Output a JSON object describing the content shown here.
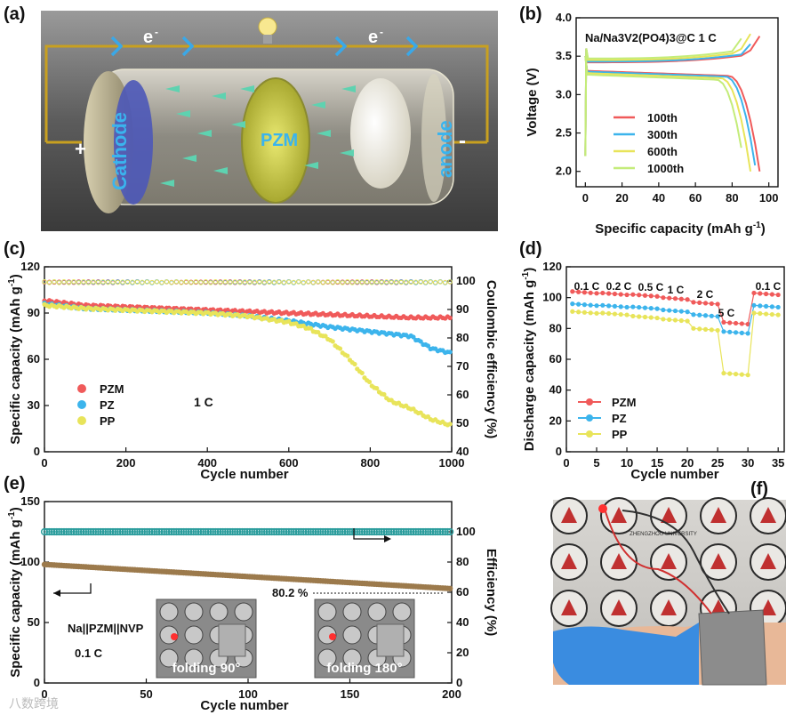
{
  "panels": {
    "a": "(a)",
    "b": "(b)",
    "c": "(c)",
    "d": "(d)",
    "e": "(e)",
    "f": "(f)"
  },
  "panel_a": {
    "electron_label_1": "e",
    "electron_label_2": "e",
    "electron_sup": "-",
    "cathode": "Cathode",
    "anode": "anode",
    "separator": "PZM",
    "plus": "+",
    "minus": "-"
  },
  "panel_f": {
    "badge_text": "ZHENGZHOU UNIVERSITY"
  },
  "watermark": "八数跨境",
  "colors": {
    "red": "#f05a5a",
    "blue": "#3cb4ec",
    "yellow": "#e8e45a",
    "lightgreen": "#c4ec7a",
    "teal": "#2a9c9c",
    "brown": "#9c7a4c"
  },
  "chart_data": [
    {
      "id": "b",
      "type": "line",
      "title": "Na/Na3V2(PO4)3@C   1 C",
      "xlabel": "Specific capacity (mAh g-1)",
      "ylabel": "Voltage (V)",
      "xlim": [
        -5,
        105
      ],
      "ylim": [
        1.8,
        4.0
      ],
      "xticks": [
        0,
        20,
        40,
        60,
        80,
        100
      ],
      "yticks": [
        2.0,
        2.5,
        3.0,
        3.5,
        4.0
      ],
      "legend": [
        "100th",
        "300th",
        "600th",
        "1000th"
      ],
      "series": [
        {
          "name": "100th",
          "charge_end": 95,
          "discharge_end": 95,
          "charge_plateau": 3.42,
          "discharge_plateau": 3.31
        },
        {
          "name": "300th",
          "charge_end": 93,
          "discharge_end": 93,
          "charge_plateau": 3.43,
          "discharge_plateau": 3.3
        },
        {
          "name": "600th",
          "charge_end": 90,
          "discharge_end": 90,
          "charge_plateau": 3.45,
          "discharge_plateau": 3.28
        },
        {
          "name": "1000th",
          "charge_end": 87,
          "discharge_end": 87,
          "charge_plateau": 3.47,
          "discharge_plateau": 3.26
        }
      ]
    },
    {
      "id": "c",
      "type": "scatter",
      "xlabel": "Cycle number",
      "ylabel": "Specific capacity (mAh g-1)",
      "ylabel_right": "Coulombic efficiency (%)",
      "xlim": [
        0,
        1000
      ],
      "ylim": [
        0,
        120
      ],
      "ylim_right": [
        40,
        105
      ],
      "xticks": [
        0,
        200,
        400,
        600,
        800,
        1000
      ],
      "yticks": [
        0,
        30,
        60,
        90,
        120
      ],
      "yticks_right": [
        40,
        50,
        60,
        70,
        80,
        90,
        100
      ],
      "annotation": "1 C",
      "legend": [
        "PZM",
        "PZ",
        "PP"
      ],
      "series": [
        {
          "name": "PZM",
          "x": [
            0,
            100,
            200,
            300,
            400,
            500,
            600,
            700,
            800,
            900,
            1000
          ],
          "y": [
            98,
            95,
            94,
            93,
            92,
            91,
            90,
            89,
            88,
            87,
            87
          ]
        },
        {
          "name": "PZ",
          "x": [
            0,
            100,
            200,
            300,
            400,
            500,
            600,
            700,
            800,
            900,
            950,
            1000
          ],
          "y": [
            96,
            93,
            92,
            91,
            90,
            88,
            85,
            81,
            78,
            75,
            67,
            64
          ]
        },
        {
          "name": "PP",
          "x": [
            0,
            100,
            200,
            300,
            400,
            500,
            600,
            650,
            700,
            750,
            800,
            850,
            900,
            950,
            1000
          ],
          "y": [
            95,
            93,
            92,
            91,
            90,
            88,
            84,
            80,
            73,
            60,
            44,
            33,
            28,
            21,
            17
          ]
        }
      ],
      "efficiency": 99.6
    },
    {
      "id": "d",
      "type": "scatter",
      "xlabel": "Cycle number",
      "ylabel": "Discharge capacity (mAh g-1)",
      "xlim": [
        0,
        36
      ],
      "ylim": [
        0,
        120
      ],
      "xticks": [
        0,
        5,
        10,
        15,
        20,
        25,
        30,
        35
      ],
      "yticks": [
        0,
        20,
        40,
        60,
        80,
        100,
        120
      ],
      "rate_labels": [
        "0.1 C",
        "0.2 C",
        "0.5 C",
        "1 C",
        "2 C",
        "5 C",
        "0.1 C"
      ],
      "legend": [
        "PZM",
        "PZ",
        "PP"
      ],
      "series": [
        {
          "name": "PZM",
          "values": [
            104,
            103,
            102,
            100,
            97,
            84,
            103
          ]
        },
        {
          "name": "PZ",
          "values": [
            96,
            95,
            94,
            92,
            89,
            78,
            95
          ]
        },
        {
          "name": "PP",
          "values": [
            91,
            90,
            88,
            86,
            80,
            51,
            90
          ]
        }
      ]
    },
    {
      "id": "e",
      "type": "scatter",
      "xlabel": "Cycle number",
      "ylabel": "Specific capacity (mAh g-1)",
      "ylabel_right": "Efficiency (%)",
      "xlim": [
        0,
        200
      ],
      "ylim": [
        0,
        150
      ],
      "ylim_right": [
        0,
        120
      ],
      "xticks": [
        0,
        50,
        100,
        150,
        200
      ],
      "yticks": [
        0,
        50,
        100,
        150
      ],
      "yticks_right": [
        0,
        20,
        40,
        60,
        80,
        100
      ],
      "capacity_start": 98,
      "capacity_end": 78,
      "efficiency": 100,
      "retention_label": "80.2 %",
      "cell_label": "Na||PZM||NVP",
      "rate_label": "0.1 C",
      "inset_1": "folding 90°",
      "inset_2": "folding 180°"
    }
  ]
}
